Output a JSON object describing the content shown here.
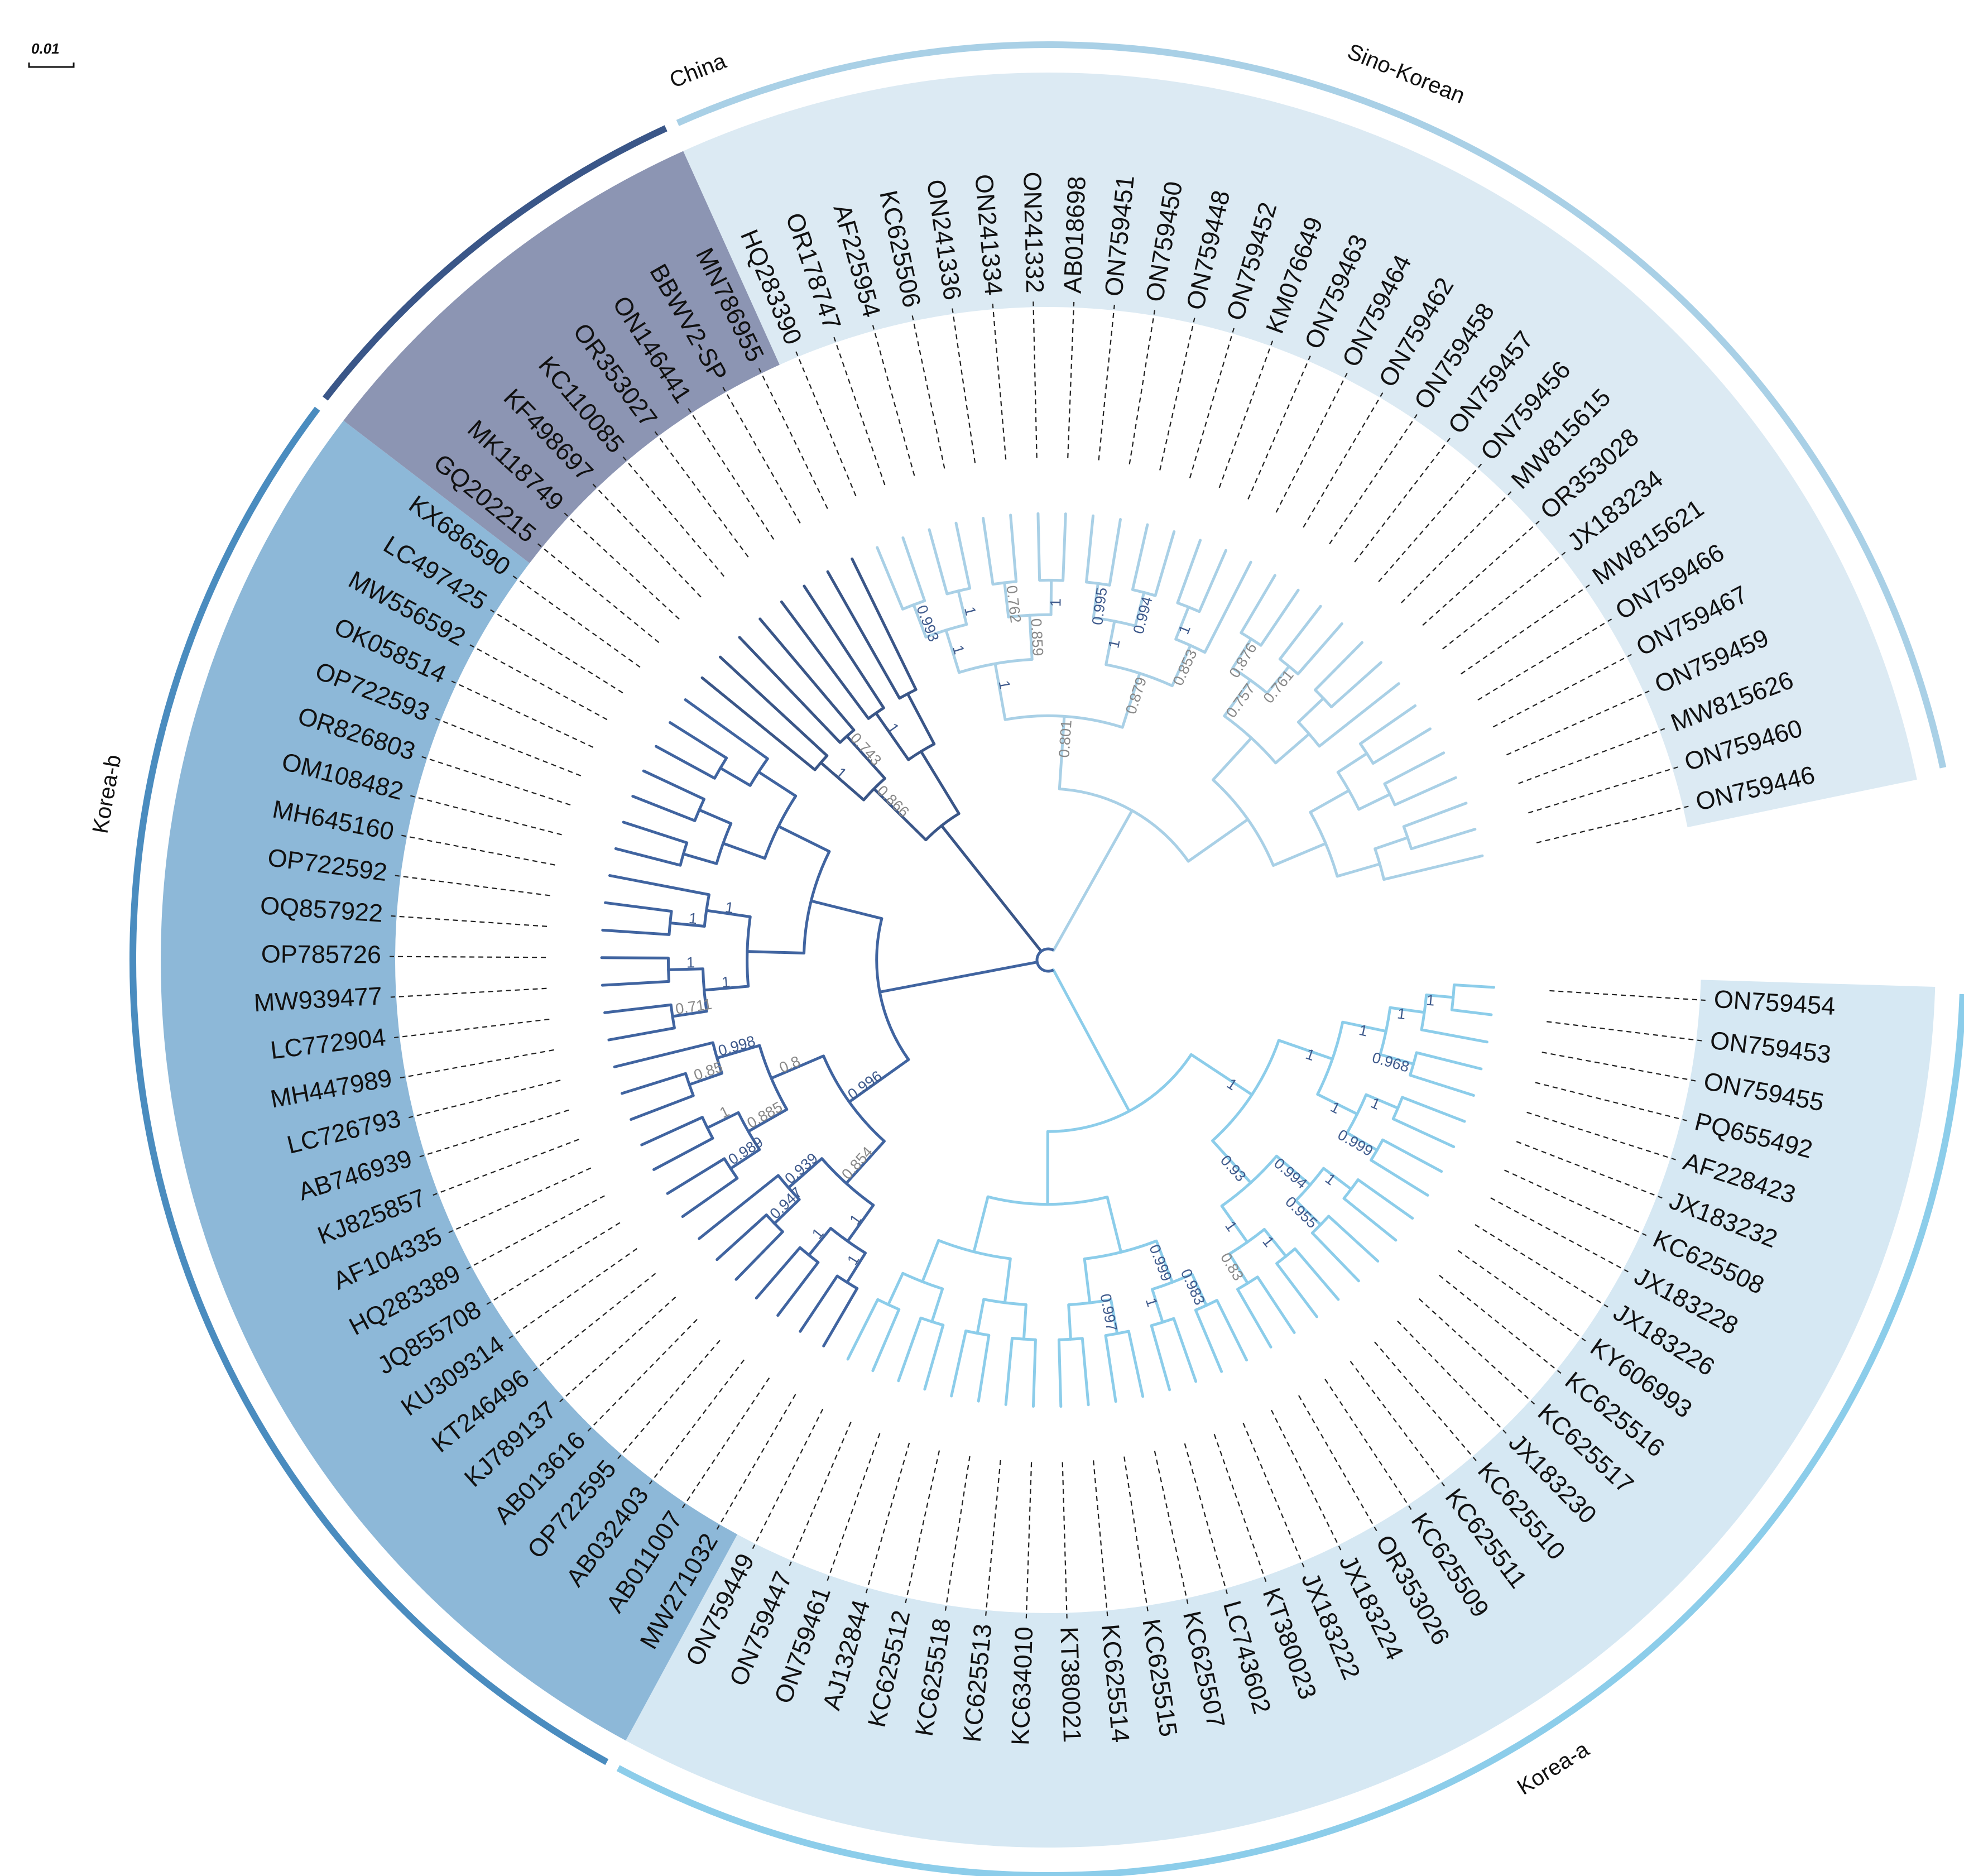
{
  "colors": {
    "china": "#3a5688",
    "china_band": "#8c95b3",
    "korea_b": "#4a8cbf",
    "korea_b_branch": "#4064a0",
    "korea_b_band": "#8db8d8",
    "sino_korean": "#a9d0e6",
    "sino_korean_band": "#dceaf3",
    "korea_a": "#8ccdea",
    "korea_a_band": "#d6e8f3",
    "highlight": "#e02020",
    "support_dark": "#3f5a8c",
    "support_grey": "#888888"
  },
  "scale_bar": {
    "label": "0.01"
  },
  "clades": [
    {
      "id": "china",
      "name": "China"
    },
    {
      "id": "korea_b",
      "name": "Korea-b"
    },
    {
      "id": "sino_korean",
      "name": "Sino-Korean"
    },
    {
      "id": "korea_a",
      "name": "Korea-a"
    }
  ],
  "leaves": [
    {
      "name": "ON759454",
      "clade": "korea_a"
    },
    {
      "name": "ON759453",
      "clade": "korea_a"
    },
    {
      "name": "ON759455",
      "clade": "korea_a"
    },
    {
      "name": "PQ655492",
      "clade": "korea_a"
    },
    {
      "name": "AF228423",
      "clade": "korea_a"
    },
    {
      "name": "JX183232",
      "clade": "korea_a"
    },
    {
      "name": "KC625508",
      "clade": "korea_a"
    },
    {
      "name": "JX183228",
      "clade": "korea_a"
    },
    {
      "name": "JX183226",
      "clade": "korea_a"
    },
    {
      "name": "KY606993",
      "clade": "korea_a"
    },
    {
      "name": "KC625516",
      "clade": "korea_a"
    },
    {
      "name": "KC625517",
      "clade": "korea_a"
    },
    {
      "name": "JX183230",
      "clade": "korea_a"
    },
    {
      "name": "KC625510",
      "clade": "korea_a"
    },
    {
      "name": "KC625511",
      "clade": "korea_a"
    },
    {
      "name": "KC625509",
      "clade": "korea_a"
    },
    {
      "name": "OR353026",
      "clade": "korea_a"
    },
    {
      "name": "JX183224",
      "clade": "korea_a"
    },
    {
      "name": "JX183222",
      "clade": "korea_a"
    },
    {
      "name": "KT380023",
      "clade": "korea_a"
    },
    {
      "name": "LC743602",
      "clade": "korea_a"
    },
    {
      "name": "KC625507",
      "clade": "korea_a"
    },
    {
      "name": "KC625515",
      "clade": "korea_a"
    },
    {
      "name": "KC625514",
      "clade": "korea_a"
    },
    {
      "name": "KT380021",
      "clade": "korea_a"
    },
    {
      "name": "KC634010",
      "clade": "korea_a"
    },
    {
      "name": "KC625513",
      "clade": "korea_a"
    },
    {
      "name": "KC625518",
      "clade": "korea_a"
    },
    {
      "name": "KC625512",
      "clade": "korea_a"
    },
    {
      "name": "AJ132844",
      "clade": "korea_a"
    },
    {
      "name": "ON759461",
      "clade": "korea_a"
    },
    {
      "name": "ON759447",
      "clade": "korea_a"
    },
    {
      "name": "ON759449",
      "clade": "korea_a"
    },
    {
      "name": "MW271032",
      "clade": "korea_b"
    },
    {
      "name": "AB011007",
      "clade": "korea_b"
    },
    {
      "name": "AB032403",
      "clade": "korea_b"
    },
    {
      "name": "OP722595",
      "clade": "korea_b"
    },
    {
      "name": "AB013616",
      "clade": "korea_b"
    },
    {
      "name": "KJ789137",
      "clade": "korea_b"
    },
    {
      "name": "KT246496",
      "clade": "korea_b"
    },
    {
      "name": "KU309314",
      "clade": "korea_b"
    },
    {
      "name": "JQ855708",
      "clade": "korea_b"
    },
    {
      "name": "HQ283389",
      "clade": "korea_b"
    },
    {
      "name": "AF104335",
      "clade": "korea_b"
    },
    {
      "name": "KJ825857",
      "clade": "korea_b"
    },
    {
      "name": "AB746939",
      "clade": "korea_b"
    },
    {
      "name": "LC726793",
      "clade": "korea_b"
    },
    {
      "name": "MH447989",
      "clade": "korea_b"
    },
    {
      "name": "LC772904",
      "clade": "korea_b"
    },
    {
      "name": "MW939477",
      "clade": "korea_b"
    },
    {
      "name": "OP785726",
      "clade": "korea_b"
    },
    {
      "name": "OQ857922",
      "clade": "korea_b"
    },
    {
      "name": "OP722592",
      "clade": "korea_b"
    },
    {
      "name": "MH645160",
      "clade": "korea_b"
    },
    {
      "name": "OM108482",
      "clade": "korea_b"
    },
    {
      "name": "OR826803",
      "clade": "korea_b"
    },
    {
      "name": "OP722593",
      "clade": "korea_b"
    },
    {
      "name": "OK058514",
      "clade": "korea_b"
    },
    {
      "name": "MW556592",
      "clade": "korea_b"
    },
    {
      "name": "LC497425",
      "clade": "korea_b"
    },
    {
      "name": "KX686590",
      "clade": "korea_b"
    },
    {
      "name": "GQ202215",
      "clade": "china"
    },
    {
      "name": "MK118749",
      "clade": "china"
    },
    {
      "name": "KF498697",
      "clade": "china"
    },
    {
      "name": "KC110085",
      "clade": "china"
    },
    {
      "name": "OR353027",
      "clade": "china"
    },
    {
      "name": "ON146441",
      "clade": "china"
    },
    {
      "name": "BBWV2-SP",
      "clade": "china",
      "highlight": true
    },
    {
      "name": "MN786955",
      "clade": "china"
    },
    {
      "name": "HQ283390",
      "clade": "sino_korean"
    },
    {
      "name": "OR178747",
      "clade": "sino_korean"
    },
    {
      "name": "AF225954",
      "clade": "sino_korean"
    },
    {
      "name": "KC625506",
      "clade": "sino_korean"
    },
    {
      "name": "ON241336",
      "clade": "sino_korean"
    },
    {
      "name": "ON241334",
      "clade": "sino_korean"
    },
    {
      "name": "ON241332",
      "clade": "sino_korean"
    },
    {
      "name": "AB018698",
      "clade": "sino_korean"
    },
    {
      "name": "ON759451",
      "clade": "sino_korean"
    },
    {
      "name": "ON759450",
      "clade": "sino_korean"
    },
    {
      "name": "ON759448",
      "clade": "sino_korean"
    },
    {
      "name": "ON759452",
      "clade": "sino_korean"
    },
    {
      "name": "KM076649",
      "clade": "sino_korean"
    },
    {
      "name": "ON759463",
      "clade": "sino_korean"
    },
    {
      "name": "ON759464",
      "clade": "sino_korean"
    },
    {
      "name": "ON759462",
      "clade": "sino_korean"
    },
    {
      "name": "ON759458",
      "clade": "sino_korean"
    },
    {
      "name": "ON759457",
      "clade": "sino_korean"
    },
    {
      "name": "ON759456",
      "clade": "sino_korean"
    },
    {
      "name": "MW815615",
      "clade": "sino_korean"
    },
    {
      "name": "OR353028",
      "clade": "sino_korean"
    },
    {
      "name": "JX183234",
      "clade": "sino_korean"
    },
    {
      "name": "MW815621",
      "clade": "sino_korean"
    },
    {
      "name": "ON759466",
      "clade": "sino_korean"
    },
    {
      "name": "ON759467",
      "clade": "sino_korean"
    },
    {
      "name": "ON759459",
      "clade": "sino_korean"
    },
    {
      "name": "MW815626",
      "clade": "sino_korean"
    },
    {
      "name": "ON759460",
      "clade": "sino_korean"
    },
    {
      "name": "ON759446",
      "clade": "sino_korean"
    }
  ],
  "support_values": [
    {
      "value": "1",
      "clade": "korea_a"
    },
    {
      "value": "1",
      "clade": "korea_a"
    },
    {
      "value": "0.968",
      "clade": "korea_a"
    },
    {
      "value": "1",
      "clade": "korea_a"
    },
    {
      "value": "1",
      "clade": "korea_a"
    },
    {
      "value": "0.999",
      "clade": "korea_a"
    },
    {
      "value": "1",
      "clade": "korea_a"
    },
    {
      "value": "1",
      "clade": "korea_a"
    },
    {
      "value": "1",
      "clade": "korea_a"
    },
    {
      "value": "0.955",
      "clade": "korea_a"
    },
    {
      "value": "0.994",
      "clade": "korea_a"
    },
    {
      "value": "1",
      "clade": "korea_a"
    },
    {
      "value": "0.83",
      "clade": "korea_a",
      "grey": true
    },
    {
      "value": "1",
      "clade": "korea_a"
    },
    {
      "value": "0.93",
      "clade": "korea_a"
    },
    {
      "value": "1",
      "clade": "korea_a"
    },
    {
      "value": "0.983",
      "clade": "korea_a"
    },
    {
      "value": "1",
      "clade": "korea_a"
    },
    {
      "value": "0.999",
      "clade": "korea_a"
    },
    {
      "value": "0.997",
      "clade": "korea_a"
    },
    {
      "value": "1",
      "clade": "korea_b"
    },
    {
      "value": "1",
      "clade": "korea_b"
    },
    {
      "value": "1",
      "clade": "korea_b"
    },
    {
      "value": "0.947",
      "clade": "korea_b"
    },
    {
      "value": "0.939",
      "clade": "korea_b"
    },
    {
      "value": "0.854",
      "clade": "korea_b",
      "grey": true
    },
    {
      "value": "0.989",
      "clade": "korea_b"
    },
    {
      "value": "1",
      "clade": "korea_b",
      "grey": true
    },
    {
      "value": "0.885",
      "clade": "korea_b",
      "grey": true
    },
    {
      "value": "0.85",
      "clade": "korea_b",
      "grey": true
    },
    {
      "value": "0.998",
      "clade": "korea_b"
    },
    {
      "value": "0.8",
      "clade": "korea_b",
      "grey": true
    },
    {
      "value": "0.996",
      "clade": "korea_b"
    },
    {
      "value": "0.711",
      "clade": "korea_b",
      "grey": true
    },
    {
      "value": "1",
      "clade": "korea_b"
    },
    {
      "value": "1",
      "clade": "korea_b"
    },
    {
      "value": "1",
      "clade": "korea_b"
    },
    {
      "value": "1",
      "clade": "korea_b"
    },
    {
      "value": "1",
      "clade": "china"
    },
    {
      "value": "0.743",
      "clade": "china",
      "grey": true
    },
    {
      "value": "0.866",
      "clade": "china",
      "grey": true
    },
    {
      "value": "1",
      "clade": "china"
    },
    {
      "value": "0.993",
      "clade": "sino_korean"
    },
    {
      "value": "1",
      "clade": "sino_korean"
    },
    {
      "value": "1",
      "clade": "sino_korean"
    },
    {
      "value": "0.762",
      "clade": "sino_korean",
      "grey": true
    },
    {
      "value": "1",
      "clade": "sino_korean"
    },
    {
      "value": "0.859",
      "clade": "sino_korean",
      "grey": true
    },
    {
      "value": "1",
      "clade": "sino_korean"
    },
    {
      "value": "0.995",
      "clade": "sino_korean"
    },
    {
      "value": "0.994",
      "clade": "sino_korean"
    },
    {
      "value": "1",
      "clade": "sino_korean"
    },
    {
      "value": "1",
      "clade": "sino_korean"
    },
    {
      "value": "0.853",
      "clade": "sino_korean",
      "grey": true
    },
    {
      "value": "0.879",
      "clade": "sino_korean",
      "grey": true
    },
    {
      "value": "0.801",
      "clade": "sino_korean",
      "grey": true
    },
    {
      "value": "0.876",
      "clade": "sino_korean",
      "grey": true
    },
    {
      "value": "0.761",
      "clade": "sino_korean",
      "grey": true
    },
    {
      "value": "0.757",
      "clade": "sino_korean",
      "grey": true
    }
  ]
}
